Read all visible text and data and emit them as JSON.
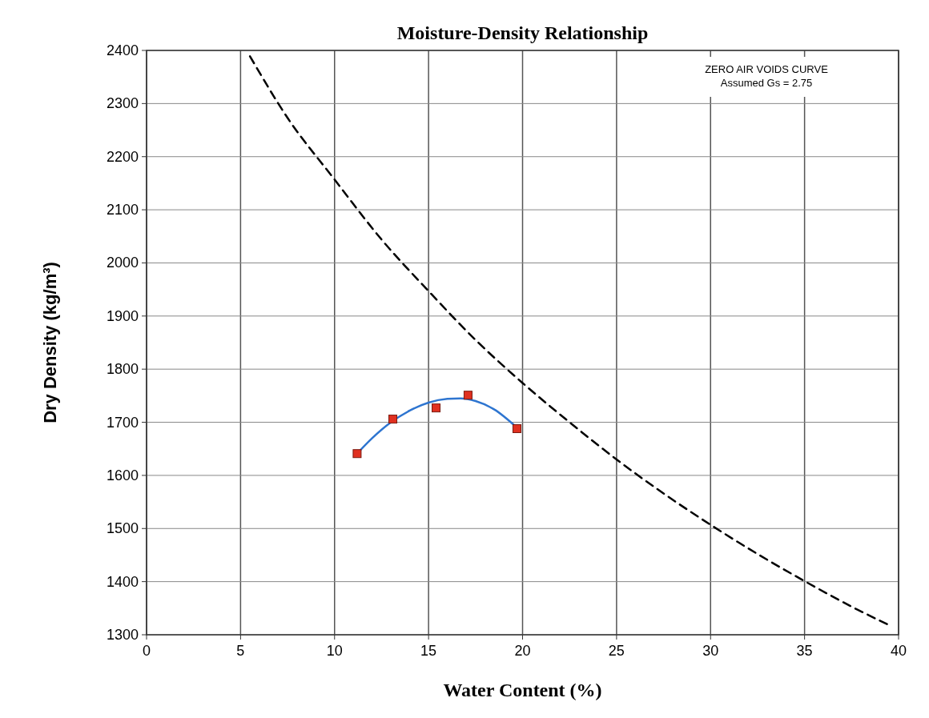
{
  "chart_data": {
    "type": "scatter",
    "title": "Moisture-Density Relationship",
    "xlabel": "Water Content (%)",
    "ylabel": "Dry Density (kg/m³)",
    "xlim": [
      0,
      40
    ],
    "ylim": [
      1300,
      2400
    ],
    "xticks": [
      0,
      5,
      10,
      15,
      20,
      25,
      30,
      35,
      40
    ],
    "yticks": [
      1300,
      1400,
      1500,
      1600,
      1700,
      1800,
      1900,
      2000,
      2100,
      2200,
      2300,
      2400
    ],
    "grid": true,
    "annotations": [
      "ZERO AIR VOIDS CURVE",
      "Assumed Gs = 2.75"
    ],
    "series": [
      {
        "type": "line",
        "color": "#000000",
        "line_style": "dashed",
        "marker": "none",
        "x": [
          5.5,
          7.5,
          10,
          12.5,
          15,
          17.5,
          20,
          22.5,
          25,
          27.5,
          30,
          32.5,
          35,
          37.5,
          39.5
        ],
        "values": [
          2389,
          2273,
          2157,
          2044,
          1947,
          1855,
          1774,
          1700,
          1630,
          1566,
          1507,
          1452,
          1401,
          1353,
          1318
        ]
      },
      {
        "type": "line",
        "color": "#2e75d0",
        "line_style": "solid",
        "marker": "none",
        "x": [
          11.2,
          12,
          13,
          14,
          15,
          16,
          16.7,
          17.5,
          18.5,
          19.7
        ],
        "values": [
          1641,
          1670,
          1700,
          1722,
          1737,
          1744,
          1745,
          1740,
          1724,
          1690
        ]
      },
      {
        "color": "#e03020",
        "marker": "square",
        "x": [
          11.2,
          13.1,
          15.4,
          17.1,
          19.7
        ],
        "values": [
          1641,
          1706,
          1727,
          1751,
          1688
        ]
      }
    ]
  }
}
